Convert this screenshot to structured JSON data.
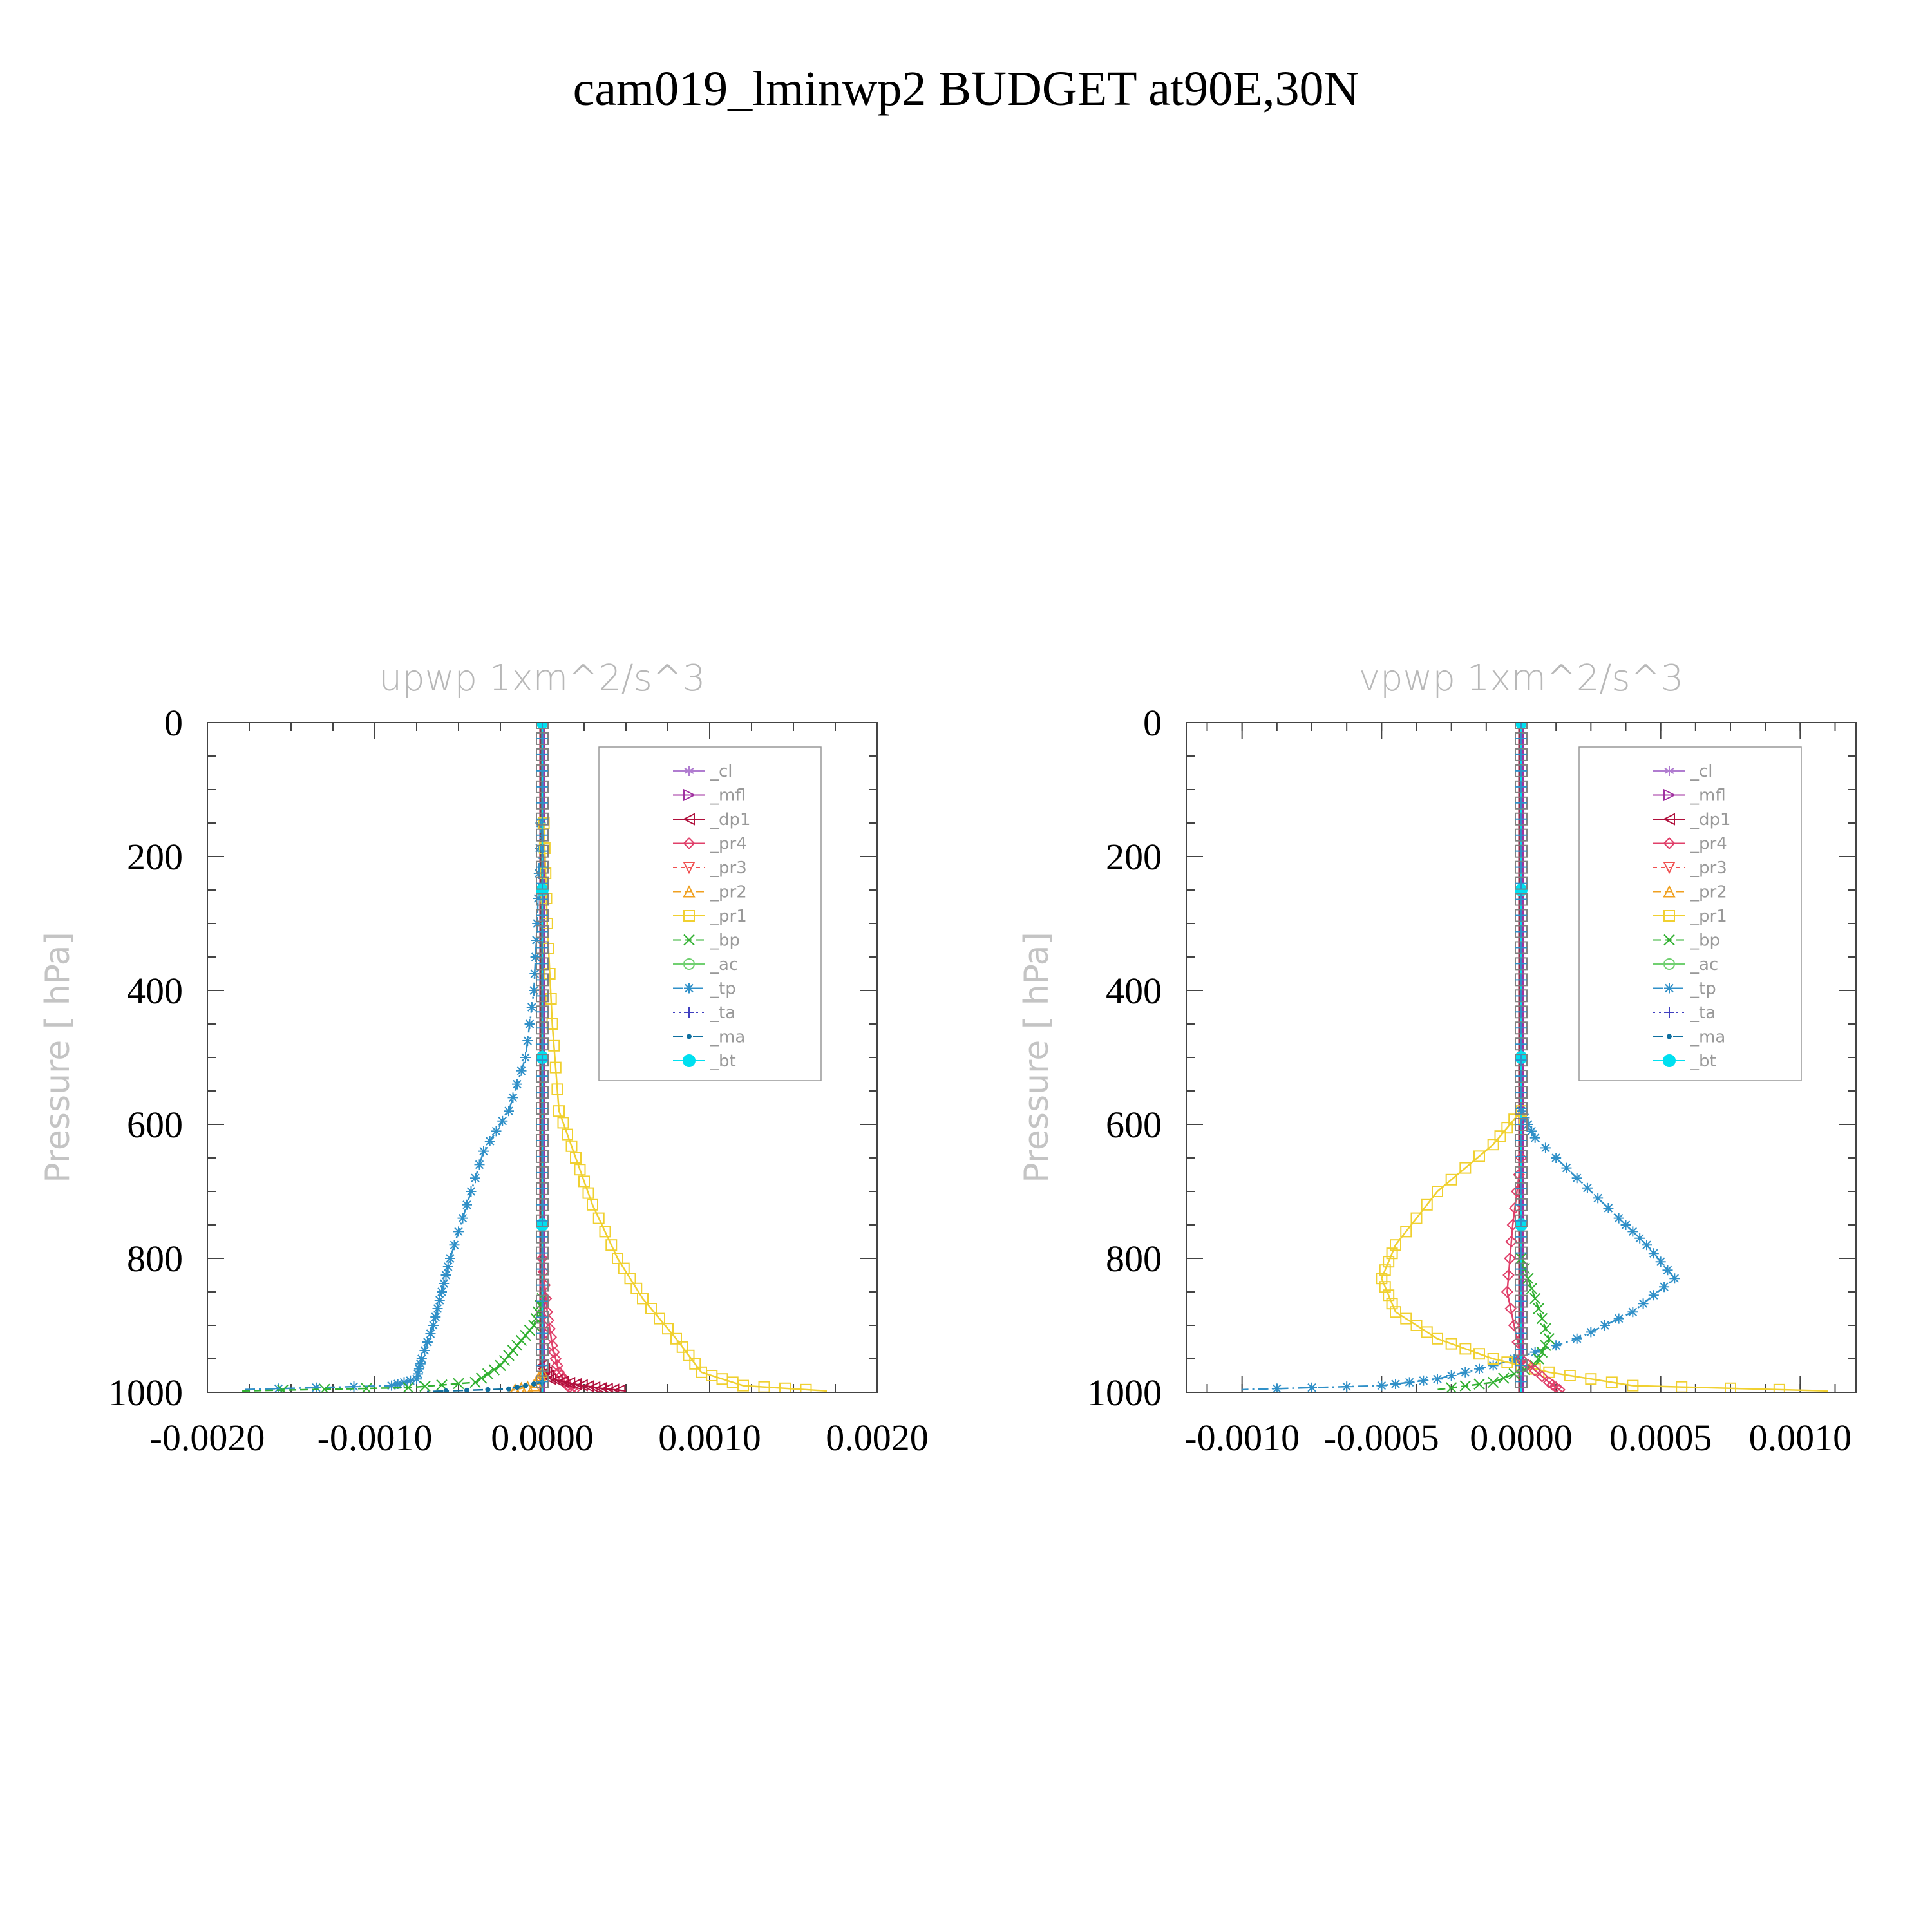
{
  "title": "cam019_lminwp2  BUDGET at90E,30N",
  "legend": [
    {
      "label": "_cl",
      "color": "#b07cd0",
      "marker": "star",
      "dash": ""
    },
    {
      "label": "_mfl",
      "color": "#a030a0",
      "marker": "tri-right",
      "dash": ""
    },
    {
      "label": "_dp1",
      "color": "#b0103c",
      "marker": "tri-left",
      "dash": ""
    },
    {
      "label": "_pr4",
      "color": "#e0406a",
      "marker": "diamond",
      "dash": ""
    },
    {
      "label": "_pr3",
      "color": "#f05050",
      "marker": "tri-down",
      "dash": "6 6"
    },
    {
      "label": "_pr2",
      "color": "#f0a020",
      "marker": "tri-up",
      "dash": "12 6"
    },
    {
      "label": "_pr1",
      "color": "#f0d030",
      "marker": "square",
      "dash": ""
    },
    {
      "label": "_bp",
      "color": "#30b030",
      "marker": "x",
      "dash": "12 6"
    },
    {
      "label": "_ac",
      "color": "#70d070",
      "marker": "circle",
      "dash": ""
    },
    {
      "label": "_tp",
      "color": "#3090c8",
      "marker": "asterisk",
      "dash": "16 6 3 6"
    },
    {
      "label": "_ta",
      "color": "#4040c0",
      "marker": "plus",
      "dash": "3 6"
    },
    {
      "label": "_ma",
      "color": "#1070a0",
      "marker": "dot",
      "dash": "16 6 3 6"
    },
    {
      "label": "_bt",
      "color": "#00e0f0",
      "marker": "filled-circle",
      "dash": ""
    }
  ],
  "chart_data": [
    {
      "type": "line",
      "title": "upwp   1xm^2/s^3",
      "ylabel": "Pressure [ hPa]",
      "xlim": [
        -0.002,
        0.002
      ],
      "ylim": [
        1000,
        0
      ],
      "xticks": [
        "-0.0020",
        "-0.0010",
        "0.0000",
        "0.0010",
        "0.0020"
      ],
      "yticks": [
        "0",
        "200",
        "400",
        "600",
        "800",
        "1000"
      ],
      "series": [
        {
          "name": "_tp",
          "x": [
            -1e-05,
            -3e-05,
            -5e-05,
            -0.0001,
            -0.0002,
            -0.00035,
            -0.00045,
            -0.00055,
            -0.0006,
            -0.00065,
            -0.00072,
            -0.00075,
            -0.0009,
            -0.0018
          ],
          "y": [
            150,
            300,
            400,
            500,
            580,
            640,
            720,
            800,
            850,
            900,
            950,
            980,
            990,
            996
          ]
        },
        {
          "name": "_pr1",
          "x": [
            1e-05,
            3e-05,
            6e-05,
            0.0001,
            0.0002,
            0.0003,
            0.00045,
            0.0006,
            0.0008,
            0.00095,
            0.0012,
            0.0017
          ],
          "y": [
            150,
            300,
            450,
            580,
            650,
            720,
            800,
            860,
            920,
            970,
            990,
            998
          ]
        },
        {
          "name": "_bp",
          "x": [
            0,
            -5e-05,
            -0.00015,
            -0.00025,
            -0.0004,
            -0.0008,
            -0.0018
          ],
          "y": [
            860,
            900,
            930,
            960,
            985,
            993,
            998
          ]
        },
        {
          "name": "_pr4",
          "x": [
            0,
            3e-05,
            6e-05,
            0.0001,
            0.00015,
            0.0002
          ],
          "y": [
            800,
            880,
            930,
            970,
            990,
            1000
          ]
        },
        {
          "name": "_dp1",
          "x": [
            0,
            5e-05,
            0.0002,
            0.00035,
            0.0005
          ],
          "y": [
            960,
            980,
            988,
            994,
            998
          ]
        },
        {
          "name": "_pr2",
          "x": [
            0,
            -5e-05,
            -0.0002
          ],
          "y": [
            970,
            990,
            998
          ]
        },
        {
          "name": "_ma",
          "x": [
            0,
            -0.0002,
            -0.0007
          ],
          "y": [
            985,
            995,
            999
          ]
        },
        {
          "name": "_bt",
          "x": [
            0,
            0
          ],
          "y": [
            0,
            1000
          ]
        }
      ]
    },
    {
      "type": "line",
      "title": "vpwp   1xm^2/s^3",
      "ylabel": "Pressure [ hPa]",
      "xlim": [
        -0.0012,
        0.0012
      ],
      "ylim": [
        1000,
        0
      ],
      "xticks": [
        "-0.0010",
        "-0.0005",
        "0.0000",
        "0.0005",
        "0.0010"
      ],
      "yticks": [
        "0",
        "200",
        "400",
        "600",
        "800",
        "1000"
      ],
      "series": [
        {
          "name": "_tp",
          "x": [
            0,
            5e-05,
            0.0002,
            0.00035,
            0.00045,
            0.00055,
            0.0004,
            0.0002,
            -0.0001,
            -0.0003,
            -0.0005,
            -0.001
          ],
          "y": [
            580,
            620,
            680,
            740,
            780,
            830,
            880,
            920,
            960,
            980,
            990,
            996
          ]
        },
        {
          "name": "_pr1",
          "x": [
            0,
            -0.0001,
            -0.0003,
            -0.00045,
            -0.0005,
            -0.00045,
            -0.0003,
            -0.0001,
            0.0001,
            0.0004,
            0.0011
          ],
          "y": [
            580,
            630,
            700,
            780,
            830,
            880,
            920,
            950,
            970,
            990,
            998
          ]
        },
        {
          "name": "_bp",
          "x": [
            0,
            5e-05,
            0.0001,
            5e-05,
            -0.0001,
            -0.0003
          ],
          "y": [
            800,
            860,
            920,
            960,
            985,
            996
          ]
        },
        {
          "name": "_pr4",
          "x": [
            0,
            -3e-05,
            -5e-05,
            0,
            0.0001,
            0.00015
          ],
          "y": [
            650,
            750,
            850,
            950,
            985,
            1000
          ]
        },
        {
          "name": "_bt",
          "x": [
            0,
            0
          ],
          "y": [
            0,
            1000
          ]
        }
      ]
    }
  ]
}
